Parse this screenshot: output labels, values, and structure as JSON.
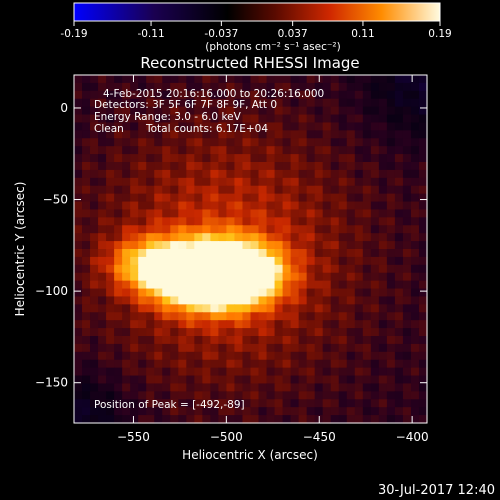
{
  "colorbar": {
    "tick_labels": [
      "-0.19",
      "-0.11",
      "-0.037",
      "0.037",
      "0.11",
      "0.19"
    ],
    "ticks": [
      -0.19,
      -0.11,
      -0.037,
      0.037,
      0.11,
      0.19
    ],
    "range": [
      -0.19,
      0.19
    ],
    "units_label": "(photons cm⁻² s⁻¹ asec⁻²)",
    "colors": [
      "#0000ff",
      "#000000",
      "#3a003a",
      "#8b1a00",
      "#ff3c00",
      "#ffb000",
      "#fff7c8"
    ]
  },
  "title": "Reconstructed RHESSI Image",
  "info": {
    "line1": "4-Feb-2015 20:16:16.000 to 20:26:16.000",
    "line2": "Detectors: 3F 5F 6F 7F 8F 9F, Att 0",
    "line3": "Energy Range: 3.0 - 6.0 keV",
    "line4_a": "Clean",
    "line4_b": "Total counts: 6.17E+04",
    "peak": "Position of Peak = [-492,-89]"
  },
  "axes": {
    "xlabel": "Heliocentric X (arcsec)",
    "ylabel": "Heliocentric Y (arcsec)",
    "xlim": [
      -582,
      -392
    ],
    "ylim": [
      -172,
      18
    ],
    "xticks": [
      -550,
      -500,
      -450,
      -400
    ],
    "xtick_labels": [
      "−550",
      "−500",
      "−450",
      "−400"
    ],
    "yticks": [
      0,
      -50,
      -100,
      -150
    ],
    "ytick_labels": [
      "0",
      "−50",
      "−100",
      "−150"
    ]
  },
  "image": {
    "peak_x": -492,
    "peak_y": -89,
    "sources": [
      {
        "x": -492,
        "y": -89,
        "amp": 0.19
      },
      {
        "x": -520,
        "y": -95,
        "amp": 0.15
      },
      {
        "x": -540,
        "y": -85,
        "amp": 0.13
      },
      {
        "x": -500,
        "y": -98,
        "amp": 0.12
      },
      {
        "x": -508,
        "y": -83,
        "amp": 0.11
      }
    ]
  },
  "timestamp": "30-Jul-2017 12:40"
}
